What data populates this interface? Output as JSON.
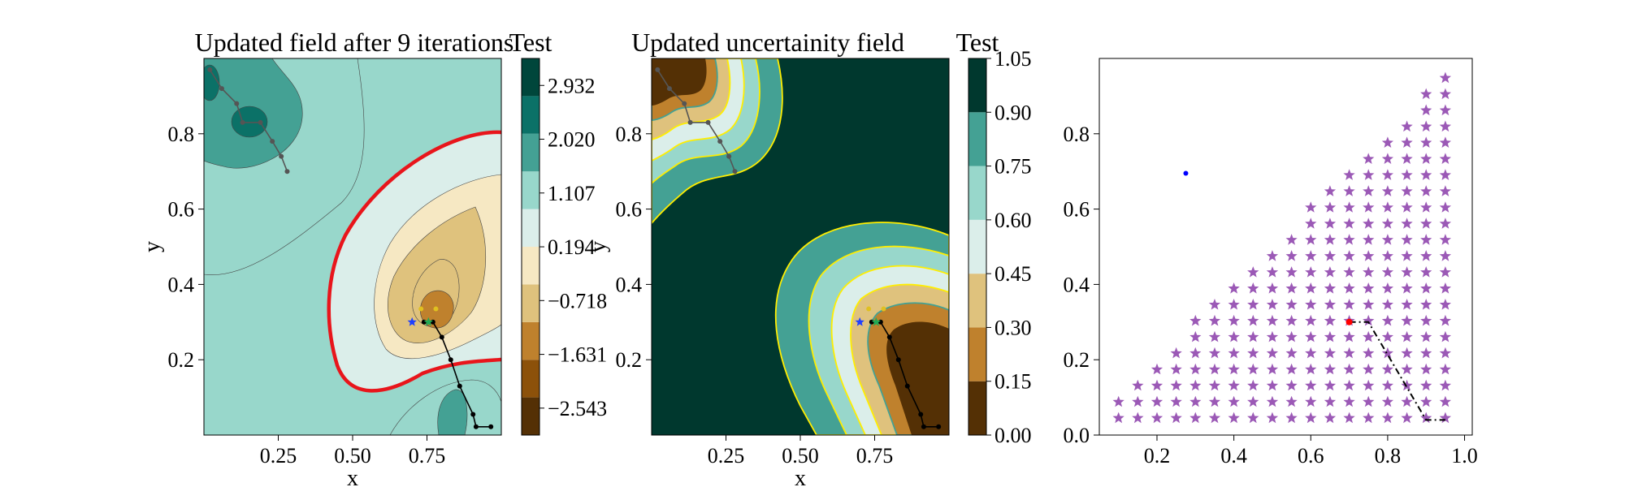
{
  "chart_data": [
    {
      "type": "contour",
      "title": "Updated field after 9 iterations",
      "xlabel": "x",
      "ylabel": "y",
      "xlim": [
        0,
        1
      ],
      "ylim": [
        0,
        1
      ],
      "xticks": [
        0.25,
        0.5,
        0.75
      ],
      "xtick_labels": [
        "0.25",
        "0.50",
        "0.75"
      ],
      "yticks": [
        0.2,
        0.4,
        0.6,
        0.8
      ],
      "ytick_labels": [
        "0.2",
        "0.4",
        "0.6",
        "0.8"
      ],
      "colorbar": {
        "title": "Test",
        "ticks": [
          2.932,
          2.02,
          1.107,
          0.194,
          -0.718,
          -1.631,
          -2.543
        ],
        "tick_labels": [
          "2.932",
          "2.020",
          "1.107",
          "0.194",
          "−0.718",
          "−1.631",
          "−2.543"
        ],
        "range": [
          -3.0,
          3.39
        ],
        "colors": [
          "#543005",
          "#8c510a",
          "#bf812d",
          "#dfc27d",
          "#f6e8c3",
          "#dbeeea",
          "#98d7cb",
          "#44a194",
          "#0b7167",
          "#00463b"
        ]
      },
      "red_contour_level": 0,
      "paths": [
        {
          "color": "#000000",
          "points": [
            [
              0.965,
              0.022
            ],
            [
              0.915,
              0.022
            ],
            [
              0.905,
              0.055
            ],
            [
              0.86,
              0.13
            ],
            [
              0.83,
              0.2
            ],
            [
              0.8,
              0.26
            ],
            [
              0.77,
              0.3
            ],
            [
              0.74,
              0.3
            ]
          ]
        },
        {
          "color": "#555555",
          "points": [
            [
              0.02,
              0.97
            ],
            [
              0.06,
              0.92
            ],
            [
              0.11,
              0.88
            ],
            [
              0.13,
              0.83
            ],
            [
              0.19,
              0.83
            ],
            [
              0.23,
              0.78
            ],
            [
              0.26,
              0.74
            ],
            [
              0.28,
              0.7
            ]
          ]
        }
      ],
      "markers": [
        {
          "x": 0.7,
          "y": 0.3,
          "color": "#1f3fff",
          "shape": "star"
        },
        {
          "x": 0.755,
          "y": 0.3,
          "color": "#22aa55",
          "shape": "star"
        },
        {
          "x": 0.73,
          "y": 0.335,
          "color": "#e0c020",
          "shape": "dot"
        },
        {
          "x": 0.78,
          "y": 0.335,
          "color": "#e0c020",
          "shape": "dot"
        }
      ]
    },
    {
      "type": "contour",
      "title": "Updated uncertainity field",
      "xlabel": "x",
      "ylabel": "y",
      "xlim": [
        0,
        1
      ],
      "ylim": [
        0,
        1
      ],
      "xticks": [
        0.25,
        0.5,
        0.75
      ],
      "xtick_labels": [
        "0.25",
        "0.50",
        "0.75"
      ],
      "yticks": [
        0.2,
        0.4,
        0.6,
        0.8
      ],
      "ytick_labels": [
        "0.2",
        "0.4",
        "0.6",
        "0.8"
      ],
      "colorbar": {
        "title": "Test",
        "ticks": [
          1.05,
          0.9,
          0.75,
          0.6,
          0.45,
          0.3,
          0.15,
          0.0
        ],
        "tick_labels": [
          "1.05",
          "0.90",
          "0.75",
          "0.60",
          "0.45",
          "0.30",
          "0.15",
          "0.00"
        ],
        "range": [
          0.0,
          1.05
        ],
        "colors": [
          "#543005",
          "#bf812d",
          "#dfc27d",
          "#dbeeea",
          "#98d7cb",
          "#44a194",
          "#00382e"
        ]
      },
      "contour_line_color": "#ffee00",
      "paths": [
        {
          "color": "#000000",
          "points": [
            [
              0.965,
              0.022
            ],
            [
              0.915,
              0.022
            ],
            [
              0.905,
              0.055
            ],
            [
              0.86,
              0.13
            ],
            [
              0.83,
              0.2
            ],
            [
              0.8,
              0.26
            ],
            [
              0.77,
              0.3
            ],
            [
              0.74,
              0.3
            ]
          ]
        },
        {
          "color": "#555555",
          "points": [
            [
              0.02,
              0.97
            ],
            [
              0.06,
              0.92
            ],
            [
              0.11,
              0.88
            ],
            [
              0.13,
              0.83
            ],
            [
              0.19,
              0.83
            ],
            [
              0.23,
              0.78
            ],
            [
              0.26,
              0.74
            ],
            [
              0.28,
              0.7
            ]
          ]
        }
      ],
      "markers": [
        {
          "x": 0.7,
          "y": 0.3,
          "color": "#1f3fff",
          "shape": "star"
        },
        {
          "x": 0.755,
          "y": 0.3,
          "color": "#22aa55",
          "shape": "star"
        },
        {
          "x": 0.73,
          "y": 0.335,
          "color": "#e0c020",
          "shape": "dot"
        },
        {
          "x": 0.78,
          "y": 0.335,
          "color": "#e0c020",
          "shape": "dot"
        }
      ]
    },
    {
      "type": "scatter",
      "title": "",
      "xlim": [
        0.05,
        1.02
      ],
      "ylim": [
        0.0,
        1.0
      ],
      "xticks": [
        0.2,
        0.4,
        0.6,
        0.8,
        1.0
      ],
      "xtick_labels": [
        "0.2",
        "0.4",
        "0.6",
        "0.8",
        "1.0"
      ],
      "yticks": [
        0.0,
        0.2,
        0.4,
        0.6,
        0.8
      ],
      "ytick_labels": [
        "0.0",
        "0.2",
        "0.4",
        "0.6",
        "0.8"
      ],
      "candidate_color": "#9b59b6",
      "candidate_rule": "triangular grid: x from 0.10 to 0.95 step 0.05, y from 0.045 to 0.955 step 0.043, kept where y <= x + 0.005",
      "blue_point": {
        "x": 0.275,
        "y": 0.695,
        "color": "#0000ff"
      },
      "red_point": {
        "x": 0.7,
        "y": 0.3,
        "color": "#ff0000"
      },
      "path": {
        "color": "#000000",
        "style": "dash-dot",
        "points": [
          [
            0.7,
            0.3
          ],
          [
            0.75,
            0.3
          ],
          [
            0.9,
            0.04
          ],
          [
            0.95,
            0.04
          ]
        ]
      }
    }
  ]
}
